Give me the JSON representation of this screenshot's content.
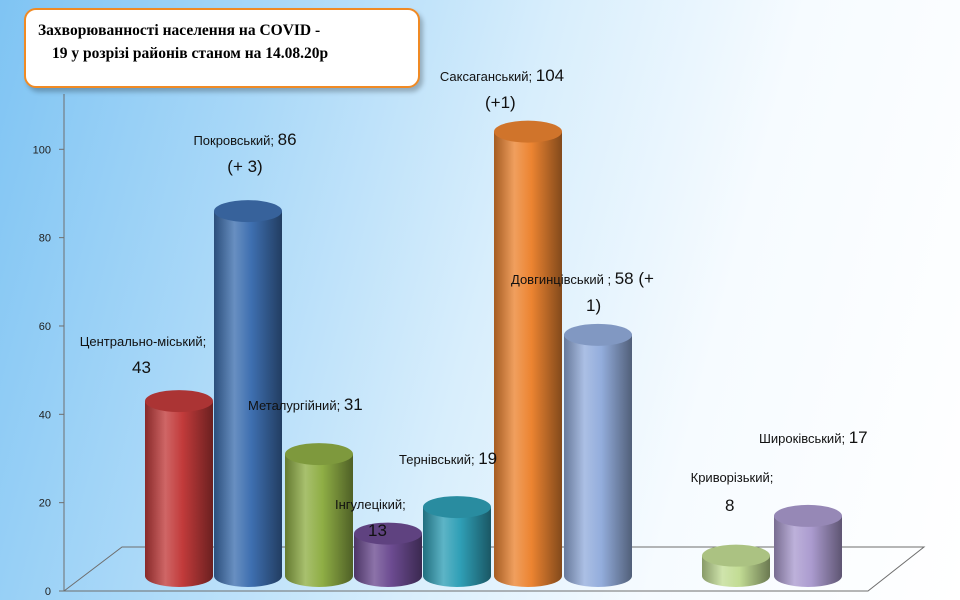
{
  "title": {
    "line1": "Захворюванності  населення  на COVID  -",
    "line2": "19 у розрізі  районів станом на 14.08.20р"
  },
  "chart_data": {
    "type": "bar",
    "title": "Захворюванності населення на COVID - 19 у розрізі районів станом на 14.08.20р",
    "categories": [
      "Центрально-міський",
      "Покровський",
      "Металургійний",
      "Інгулецікий",
      "Тернівський",
      "Саксаганський",
      "Довгинцівський",
      "Криворізький",
      "Широківський"
    ],
    "values": [
      43,
      86,
      31,
      13,
      19,
      104,
      58,
      8,
      17
    ],
    "colors": [
      "#c23b3b",
      "#3e6fb0",
      "#8fae45",
      "#6c4b91",
      "#2f9fb6",
      "#ec8431",
      "#93addc",
      "#c2dc94",
      "#ab9bcf"
    ],
    "ylim": [
      0,
      120
    ],
    "yticks": [
      0,
      20,
      40,
      60,
      80,
      100
    ],
    "grid": false,
    "legend": "none"
  },
  "data_labels": [
    {
      "line1": "Центрально-міський;",
      "line2": "43"
    },
    {
      "line1": "Покровський; ",
      "line1_value": "86",
      "line2": "(+ 3)"
    },
    {
      "line1": "Металургійний; ",
      "line1_value": "31"
    },
    {
      "line1": "Інгулецікий;",
      "line2": "13"
    },
    {
      "line1": "Тернівський; ",
      "line1_value": "19"
    },
    {
      "line1": "Саксаганський; ",
      "line1_value": "104",
      "line2": "(+1)"
    },
    {
      "line1": "Довгинцівський ; ",
      "line1_value": "58 (+",
      "line2": "1)"
    },
    {
      "line1": "Криворізький;",
      "line2": "8"
    },
    {
      "line1": "Широківський; ",
      "line1_value": "17"
    }
  ]
}
